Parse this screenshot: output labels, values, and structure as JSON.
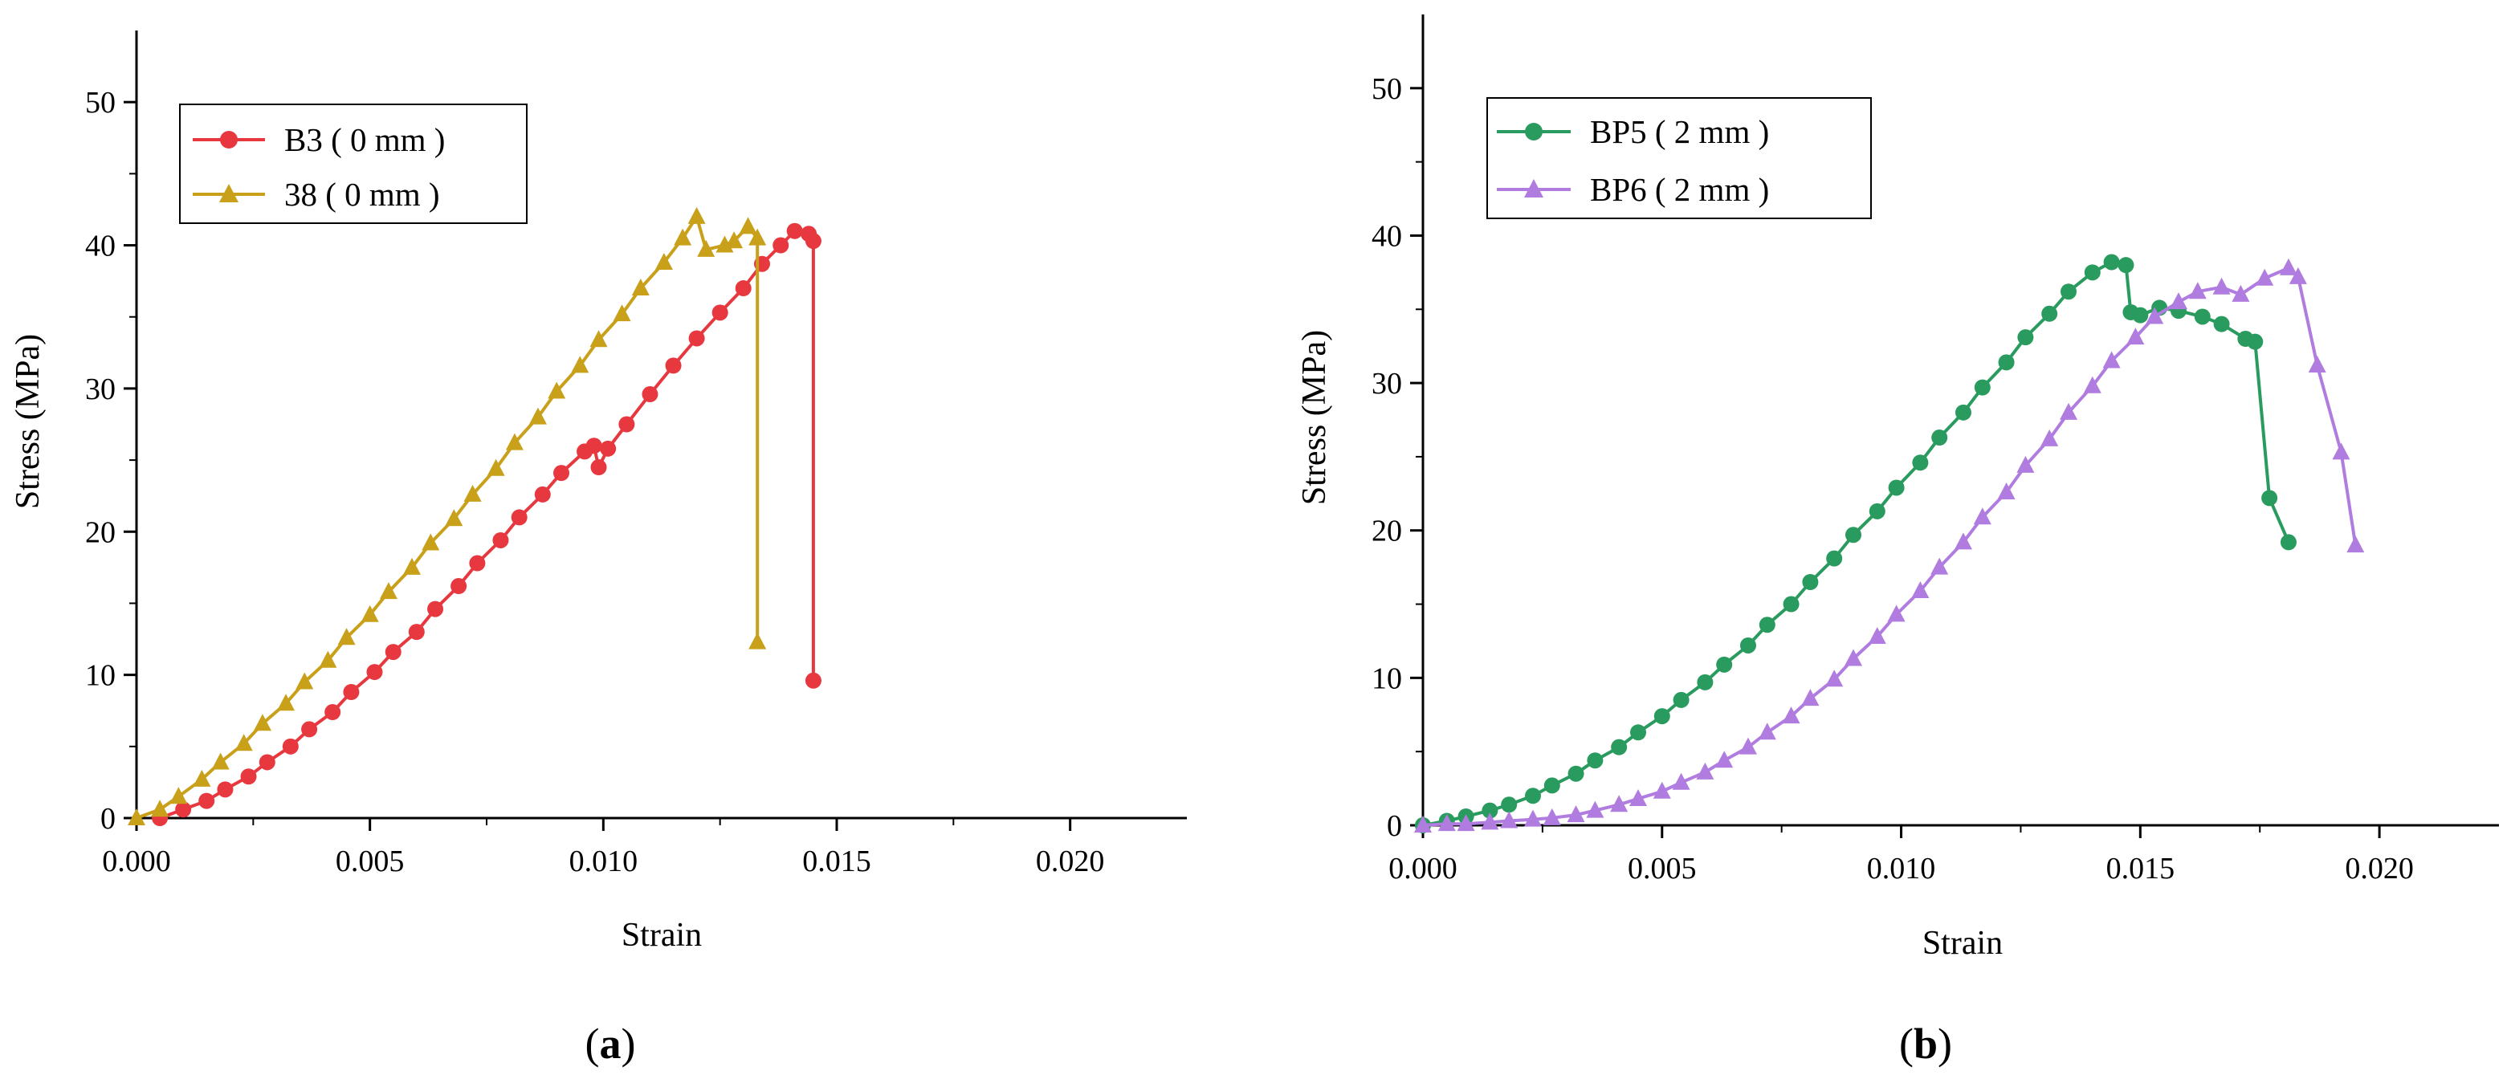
{
  "chart_data": [
    {
      "type": "line",
      "panel_label": "a",
      "xlabel": "Strain",
      "ylabel": "Stress (MPa)",
      "xlim": [
        0,
        0.0225
      ],
      "ylim": [
        0,
        55
      ],
      "xticks": [
        "0.000",
        "0.005",
        "0.010",
        "0.015",
        "0.020"
      ],
      "yticks": [
        "0",
        "10",
        "20",
        "30",
        "40",
        "50"
      ],
      "legend_position": "top-left",
      "series": [
        {
          "name": "B3 ( 0 mm )",
          "marker": "circle",
          "color": "#e8383f",
          "points": [
            [
              0.0005,
              0
            ],
            [
              0.001,
              0.6
            ],
            [
              0.0015,
              1.2
            ],
            [
              0.0019,
              2.0
            ],
            [
              0.0024,
              2.9
            ],
            [
              0.0028,
              3.9
            ],
            [
              0.0033,
              5.0
            ],
            [
              0.0037,
              6.2
            ],
            [
              0.0042,
              7.4
            ],
            [
              0.0046,
              8.8
            ],
            [
              0.0051,
              10.2
            ],
            [
              0.0055,
              11.6
            ],
            [
              0.006,
              13.0
            ],
            [
              0.0064,
              14.6
            ],
            [
              0.0069,
              16.2
            ],
            [
              0.0073,
              17.8
            ],
            [
              0.0078,
              19.4
            ],
            [
              0.0082,
              21.0
            ],
            [
              0.0087,
              22.6
            ],
            [
              0.0091,
              24.1
            ],
            [
              0.0096,
              25.6
            ],
            [
              0.0098,
              26.0
            ],
            [
              0.0099,
              24.5
            ],
            [
              0.0101,
              25.8
            ],
            [
              0.0105,
              27.5
            ],
            [
              0.011,
              29.6
            ],
            [
              0.0115,
              31.6
            ],
            [
              0.012,
              33.5
            ],
            [
              0.0125,
              35.3
            ],
            [
              0.013,
              37.0
            ],
            [
              0.0134,
              38.7
            ],
            [
              0.0138,
              40.0
            ],
            [
              0.0141,
              41.0
            ],
            [
              0.0144,
              40.8
            ],
            [
              0.0145,
              40.3
            ],
            [
              0.0145,
              9.6
            ]
          ]
        },
        {
          "name": "38 ( 0 mm )",
          "marker": "triangle",
          "color": "#c9a01a",
          "points": [
            [
              0.0,
              0
            ],
            [
              0.0005,
              0.6
            ],
            [
              0.0009,
              1.5
            ],
            [
              0.0014,
              2.7
            ],
            [
              0.0018,
              3.9
            ],
            [
              0.0023,
              5.2
            ],
            [
              0.0027,
              6.6
            ],
            [
              0.0032,
              8.0
            ],
            [
              0.0036,
              9.5
            ],
            [
              0.0041,
              11.0
            ],
            [
              0.0045,
              12.6
            ],
            [
              0.005,
              14.2
            ],
            [
              0.0054,
              15.8
            ],
            [
              0.0059,
              17.5
            ],
            [
              0.0063,
              19.2
            ],
            [
              0.0068,
              20.9
            ],
            [
              0.0072,
              22.6
            ],
            [
              0.0077,
              24.4
            ],
            [
              0.0081,
              26.2
            ],
            [
              0.0086,
              28.0
            ],
            [
              0.009,
              29.8
            ],
            [
              0.0095,
              31.6
            ],
            [
              0.0099,
              33.4
            ],
            [
              0.0104,
              35.2
            ],
            [
              0.0108,
              37.0
            ],
            [
              0.0113,
              38.8
            ],
            [
              0.0117,
              40.5
            ],
            [
              0.012,
              42.0
            ],
            [
              0.0122,
              39.7
            ],
            [
              0.0126,
              40.0
            ],
            [
              0.0128,
              40.3
            ],
            [
              0.0131,
              41.3
            ],
            [
              0.0133,
              40.5
            ],
            [
              0.0133,
              12.3
            ]
          ]
        }
      ]
    },
    {
      "type": "line",
      "panel_label": "b",
      "xlabel": "Strain",
      "ylabel": "Stress (MPa)",
      "xlim": [
        0,
        0.0225
      ],
      "ylim": [
        0,
        55
      ],
      "xticks": [
        "0.000",
        "0.005",
        "0.010",
        "0.015",
        "0.020"
      ],
      "yticks": [
        "0",
        "10",
        "20",
        "30",
        "40",
        "50"
      ],
      "legend_position": "top-left",
      "series": [
        {
          "name": "BP5 ( 2 mm )",
          "marker": "circle",
          "color": "#2a9b5e",
          "points": [
            [
              0.0,
              0
            ],
            [
              0.0005,
              0.3
            ],
            [
              0.0009,
              0.6
            ],
            [
              0.0014,
              1.0
            ],
            [
              0.0018,
              1.4
            ],
            [
              0.0023,
              2.0
            ],
            [
              0.0027,
              2.7
            ],
            [
              0.0032,
              3.5
            ],
            [
              0.0036,
              4.4
            ],
            [
              0.0041,
              5.3
            ],
            [
              0.0045,
              6.3
            ],
            [
              0.005,
              7.4
            ],
            [
              0.0054,
              8.5
            ],
            [
              0.0059,
              9.7
            ],
            [
              0.0063,
              10.9
            ],
            [
              0.0068,
              12.2
            ],
            [
              0.0072,
              13.6
            ],
            [
              0.0077,
              15.0
            ],
            [
              0.0081,
              16.5
            ],
            [
              0.0086,
              18.1
            ],
            [
              0.009,
              19.7
            ],
            [
              0.0095,
              21.3
            ],
            [
              0.0099,
              22.9
            ],
            [
              0.0104,
              24.6
            ],
            [
              0.0108,
              26.3
            ],
            [
              0.0113,
              28.0
            ],
            [
              0.0117,
              29.7
            ],
            [
              0.0122,
              31.4
            ],
            [
              0.0126,
              33.1
            ],
            [
              0.0131,
              34.7
            ],
            [
              0.0135,
              36.2
            ],
            [
              0.014,
              37.5
            ],
            [
              0.0144,
              38.2
            ],
            [
              0.0147,
              38.0
            ],
            [
              0.0148,
              34.8
            ],
            [
              0.015,
              34.6
            ],
            [
              0.0154,
              35.1
            ],
            [
              0.0158,
              34.9
            ],
            [
              0.0163,
              34.5
            ],
            [
              0.0167,
              34.0
            ],
            [
              0.0172,
              33.0
            ],
            [
              0.0174,
              32.8
            ],
            [
              0.0177,
              22.2
            ],
            [
              0.0181,
              19.2
            ]
          ]
        },
        {
          "name": "BP6 ( 2 mm )",
          "marker": "triangle",
          "color": "#b07ce0",
          "points": [
            [
              0.0,
              0
            ],
            [
              0.0005,
              0.1
            ],
            [
              0.0009,
              0.1
            ],
            [
              0.0014,
              0.2
            ],
            [
              0.0018,
              0.3
            ],
            [
              0.0023,
              0.4
            ],
            [
              0.0027,
              0.5
            ],
            [
              0.0032,
              0.7
            ],
            [
              0.0036,
              1.0
            ],
            [
              0.0041,
              1.4
            ],
            [
              0.0045,
              1.8
            ],
            [
              0.005,
              2.3
            ],
            [
              0.0054,
              2.9
            ],
            [
              0.0059,
              3.6
            ],
            [
              0.0063,
              4.4
            ],
            [
              0.0068,
              5.3
            ],
            [
              0.0072,
              6.3
            ],
            [
              0.0077,
              7.4
            ],
            [
              0.0081,
              8.6
            ],
            [
              0.0086,
              9.9
            ],
            [
              0.009,
              11.3
            ],
            [
              0.0095,
              12.8
            ],
            [
              0.0099,
              14.3
            ],
            [
              0.0104,
              15.9
            ],
            [
              0.0108,
              17.5
            ],
            [
              0.0113,
              19.2
            ],
            [
              0.0117,
              20.9
            ],
            [
              0.0122,
              22.6
            ],
            [
              0.0126,
              24.4
            ],
            [
              0.0131,
              26.2
            ],
            [
              0.0135,
              28.0
            ],
            [
              0.014,
              29.8
            ],
            [
              0.0144,
              31.5
            ],
            [
              0.0149,
              33.1
            ],
            [
              0.0153,
              34.5
            ],
            [
              0.0158,
              35.5
            ],
            [
              0.0162,
              36.2
            ],
            [
              0.0167,
              36.5
            ],
            [
              0.0171,
              36.0
            ],
            [
              0.0176,
              37.1
            ],
            [
              0.0181,
              37.8
            ],
            [
              0.0183,
              37.2
            ],
            [
              0.0187,
              31.2
            ],
            [
              0.0192,
              25.3
            ],
            [
              0.0195,
              19.0
            ]
          ]
        }
      ]
    }
  ]
}
